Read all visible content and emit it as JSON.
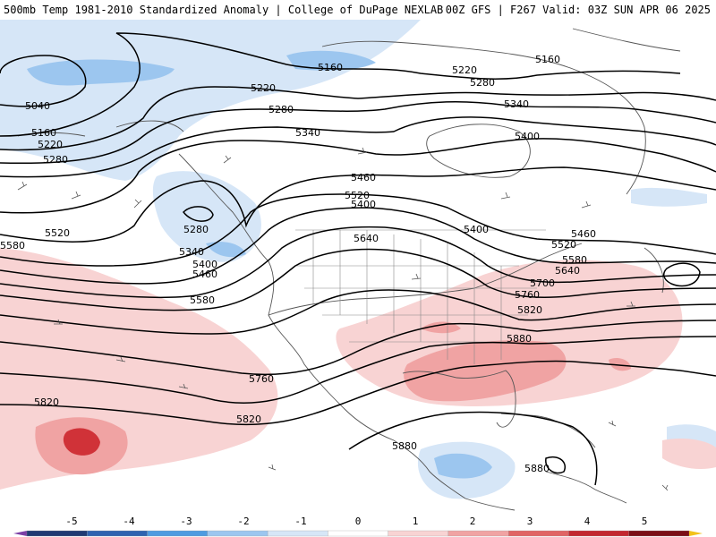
{
  "header": {
    "left_title": "500mb Temp 1981-2010 Standardized Anomaly | College of DuPage NEXLAB",
    "right_title": "00Z GFS | F267 Valid: 03Z SUN APR 06 2025"
  },
  "contour_labels": [
    "5160",
    "5220",
    "5280",
    "5340",
    "5400",
    "5040",
    "5160",
    "5220",
    "5280",
    "5280",
    "5340",
    "5400",
    "5460",
    "5520",
    "5580",
    "5640",
    "5460",
    "5520",
    "5580",
    "5640",
    "5700",
    "5760",
    "5820",
    "5880",
    "5580",
    "5520",
    "5760",
    "5820",
    "5820",
    "5880",
    "5880",
    "5160",
    "5220",
    "5280",
    "5340",
    "5400",
    "5460",
    "5400"
  ],
  "colorbar": {
    "ticks": [
      "-5",
      "-4",
      "-3",
      "-2",
      "-1",
      "0",
      "1",
      "2",
      "3",
      "4",
      "5"
    ],
    "colors": [
      "#7b3fa6",
      "#1f3a73",
      "#2e63b0",
      "#4e9be0",
      "#9cc6ef",
      "#d6e6f7",
      "#ffffff",
      "#f8d3d3",
      "#f0a3a3",
      "#e06565",
      "#c3272f",
      "#7a0f16",
      "#f2c21a"
    ]
  }
}
